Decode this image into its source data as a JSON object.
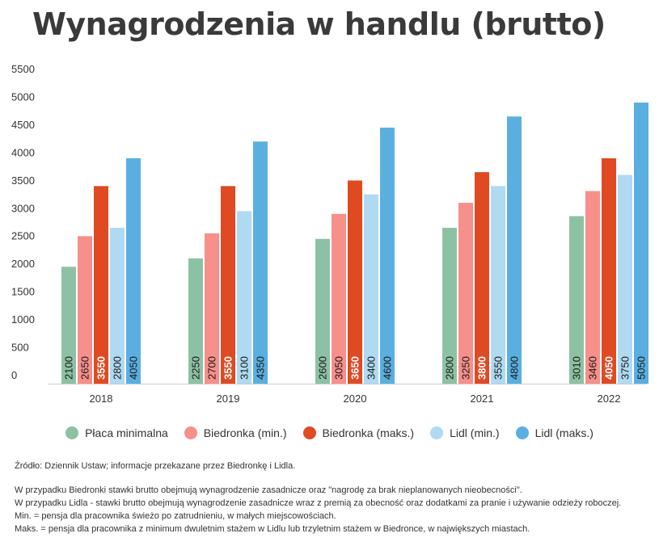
{
  "title": "Wynagrodzenia w handlu (brutto)",
  "chart_data": {
    "type": "bar",
    "categories": [
      "2018",
      "2019",
      "2020",
      "2021",
      "2022"
    ],
    "series": [
      {
        "name": "Płaca minimalna",
        "color": "#8dc1a3",
        "values": [
          2100,
          2250,
          2600,
          2800,
          3010
        ],
        "label_color": "#1a1a1a",
        "label_bold": false
      },
      {
        "name": "Biedronka (min.)",
        "color": "#f78f8b",
        "values": [
          2650,
          2700,
          3050,
          3250,
          3460
        ],
        "label_color": "#1a1a1a",
        "label_bold": false
      },
      {
        "name": "Biedronka (maks.)",
        "color": "#e04a22",
        "values": [
          3550,
          3550,
          3650,
          3800,
          4050
        ],
        "label_color": "#ffffff",
        "label_bold": true
      },
      {
        "name": "Lidl (min.)",
        "color": "#b0daf2",
        "values": [
          2800,
          3100,
          3400,
          3550,
          3750
        ],
        "label_color": "#1a1a1a",
        "label_bold": false
      },
      {
        "name": "Lidl (maks.)",
        "color": "#5aafe0",
        "values": [
          4050,
          4350,
          4600,
          4800,
          5050
        ],
        "label_color": "#1a1a1a",
        "label_bold": false
      }
    ],
    "y_ticks": [
      0,
      500,
      1000,
      1500,
      2000,
      2500,
      3000,
      3500,
      4000,
      4500,
      5000,
      5500
    ],
    "ylim": [
      0,
      5500
    ],
    "xlabel": "",
    "ylabel": ""
  },
  "notes": {
    "source": "Źródło: Dziennik Ustaw; informacje przekazane przez Biedronkę i Lidla.",
    "lines": [
      "W przypadku Biedronki stawki brutto obejmują wynagrodzenie zasadnicze oraz \"nagrodę za brak nieplanowanych nieobecności\".",
      "W przypadku Lidla - stawki brutto obejmują wynagrodzenie zasadnicze wraz z premią za obecność oraz dodatkami za pranie i używanie odzieży roboczej.",
      "Min. = pensja dla pracownika świeżo po zatrudnieniu, w małych miejscowościach.",
      "Maks. = pensja dla pracownika z minimum dwuletnim stażem w Lidlu lub trzyletnim stażem w Biedronce, w największych miastach."
    ]
  }
}
